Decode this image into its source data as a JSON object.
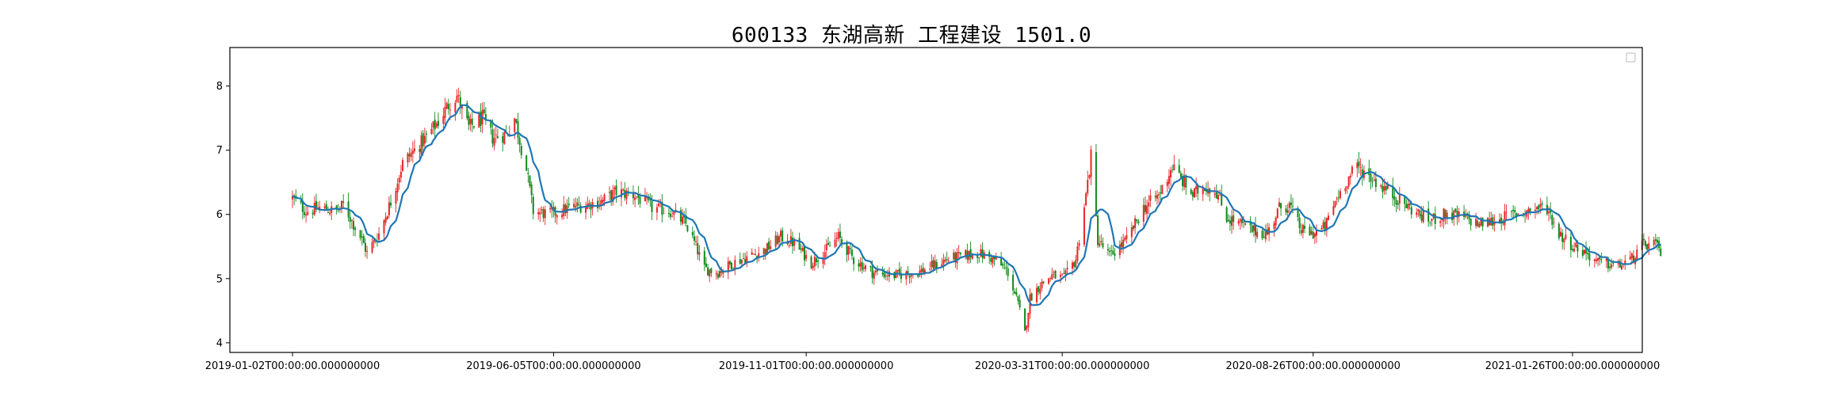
{
  "chart_data": {
    "type": "candlestick",
    "title": "600133 东湖高新 工程建设 1501.0",
    "xlabel": "",
    "ylabel": "",
    "ylim": [
      3.85,
      8.6
    ],
    "grid": false,
    "legend": "top-right (empty)",
    "colors": {
      "up": "#e8262a",
      "down": "#128a1a",
      "ma": "#1f77b4"
    },
    "x_tick_labels": [
      "2019-01-02T00:00:00.000000000",
      "2019-06-05T00:00:00.000000000",
      "2019-11-01T00:00:00.000000000",
      "2020-03-31T00:00:00.000000000",
      "2020-08-26T00:00:00.000000000",
      "2021-01-26T00:00:00.000000000"
    ],
    "y_ticks": [
      4,
      5,
      6,
      7,
      8
    ],
    "price_path": [
      [
        "2019-01-02",
        6.25
      ],
      [
        "2019-01-10",
        6.05
      ],
      [
        "2019-01-18",
        6.1
      ],
      [
        "2019-01-28",
        6.05
      ],
      [
        "2019-02-01",
        6.15
      ],
      [
        "2019-02-12",
        5.6
      ],
      [
        "2019-02-15",
        5.4
      ],
      [
        "2019-02-22",
        5.7
      ],
      [
        "2019-03-01",
        6.2
      ],
      [
        "2019-03-08",
        6.8
      ],
      [
        "2019-03-15",
        7.0
      ],
      [
        "2019-03-22",
        7.2
      ],
      [
        "2019-03-29",
        7.45
      ],
      [
        "2019-04-05",
        7.75
      ],
      [
        "2019-04-09",
        7.85
      ],
      [
        "2019-04-16",
        7.35
      ],
      [
        "2019-04-24",
        7.5
      ],
      [
        "2019-04-30",
        7.2
      ],
      [
        "2019-05-08",
        7.25
      ],
      [
        "2019-05-13",
        7.5
      ],
      [
        "2019-05-20",
        6.7
      ],
      [
        "2019-05-24",
        6.05
      ],
      [
        "2019-06-03",
        6.0
      ],
      [
        "2019-06-14",
        6.1
      ],
      [
        "2019-06-24",
        6.15
      ],
      [
        "2019-07-03",
        6.2
      ],
      [
        "2019-07-12",
        6.35
      ],
      [
        "2019-07-23",
        6.3
      ],
      [
        "2019-08-02",
        6.1
      ],
      [
        "2019-08-13",
        6.05
      ],
      [
        "2019-08-22",
        5.85
      ],
      [
        "2019-08-28",
        5.5
      ],
      [
        "2019-09-02",
        5.15
      ],
      [
        "2019-09-10",
        5.1
      ],
      [
        "2019-09-19",
        5.25
      ],
      [
        "2019-10-08",
        5.45
      ],
      [
        "2019-10-17",
        5.65
      ],
      [
        "2019-10-25",
        5.55
      ],
      [
        "2019-11-04",
        5.25
      ],
      [
        "2019-11-13",
        5.45
      ],
      [
        "2019-11-20",
        5.65
      ],
      [
        "2019-11-29",
        5.3
      ],
      [
        "2019-12-10",
        5.1
      ],
      [
        "2019-12-23",
        5.05
      ],
      [
        "2020-01-06",
        5.1
      ],
      [
        "2020-01-15",
        5.2
      ],
      [
        "2020-01-23",
        5.3
      ],
      [
        "2020-02-10",
        5.4
      ],
      [
        "2020-02-20",
        5.3
      ],
      [
        "2020-02-28",
        5.1
      ],
      [
        "2020-03-05",
        4.6
      ],
      [
        "2020-03-09",
        4.15
      ],
      [
        "2020-03-12",
        4.7
      ],
      [
        "2020-03-18",
        4.9
      ],
      [
        "2020-03-25",
        5.05
      ],
      [
        "2020-04-01",
        5.0
      ],
      [
        "2020-04-08",
        5.3
      ],
      [
        "2020-04-14",
        6.3
      ],
      [
        "2020-04-17",
        6.9
      ],
      [
        "2020-04-21",
        5.6
      ],
      [
        "2020-04-28",
        5.35
      ],
      [
        "2020-05-08",
        5.6
      ],
      [
        "2020-05-18",
        6.1
      ],
      [
        "2020-05-27",
        6.3
      ],
      [
        "2020-06-04",
        6.75
      ],
      [
        "2020-06-09",
        6.55
      ],
      [
        "2020-06-16",
        6.3
      ],
      [
        "2020-06-23",
        6.45
      ],
      [
        "2020-06-30",
        6.35
      ],
      [
        "2020-07-06",
        5.95
      ],
      [
        "2020-07-14",
        5.85
      ],
      [
        "2020-07-21",
        5.75
      ],
      [
        "2020-07-30",
        5.7
      ],
      [
        "2020-08-06",
        6.1
      ],
      [
        "2020-08-12",
        6.15
      ],
      [
        "2020-08-19",
        5.75
      ],
      [
        "2020-08-26",
        5.7
      ],
      [
        "2020-09-02",
        5.8
      ],
      [
        "2020-09-08",
        6.2
      ],
      [
        "2020-09-14",
        6.5
      ],
      [
        "2020-09-21",
        6.75
      ],
      [
        "2020-09-28",
        6.6
      ],
      [
        "2020-10-12",
        6.3
      ],
      [
        "2020-10-22",
        6.1
      ],
      [
        "2020-11-02",
        5.9
      ],
      [
        "2020-11-12",
        6.0
      ],
      [
        "2020-11-23",
        5.95
      ],
      [
        "2020-12-02",
        5.85
      ],
      [
        "2020-12-11",
        5.9
      ],
      [
        "2020-12-22",
        6.0
      ],
      [
        "2021-01-05",
        6.1
      ],
      [
        "2021-01-11",
        6.1
      ],
      [
        "2021-01-18",
        5.7
      ],
      [
        "2021-01-27",
        5.5
      ],
      [
        "2021-02-03",
        5.4
      ],
      [
        "2021-02-10",
        5.25
      ],
      [
        "2021-02-22",
        5.2
      ],
      [
        "2021-03-02",
        5.3
      ],
      [
        "2021-03-08",
        5.5
      ],
      [
        "2021-03-15",
        5.55
      ],
      [
        "2021-03-19",
        5.4
      ]
    ]
  }
}
